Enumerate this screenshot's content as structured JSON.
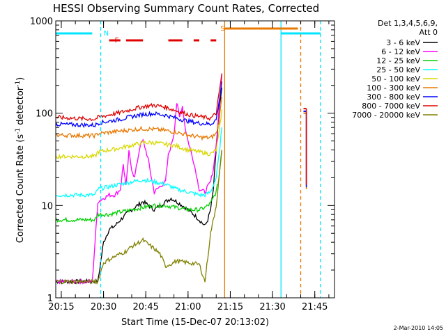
{
  "chart_data": {
    "type": "line",
    "title": "HESSI Observing Summary Count Rates, Corrected",
    "xlabel": "Start Time (15-Dec-07 20:13:02)",
    "ylabel": "Corrected Count Rate (s",
    "ylabel_exp": "-1",
    "ylabel_tail": " detector",
    "ylabel_tail_exp": "-1",
    "ylabel_close": ")",
    "yscale": "log",
    "xlim": [
      "20:13:02",
      "21:52:00"
    ],
    "ylim": [
      1,
      1000
    ],
    "x_ticks": [
      "20:15",
      "20:30",
      "20:45",
      "21:00",
      "21:15",
      "21:30",
      "21:45"
    ],
    "y_ticks": [
      "1",
      "10",
      "100",
      "1000"
    ],
    "footer": "2-Mar-2010 14:05",
    "legend_header": [
      "Det 1,3,4,5,6,9,",
      "Att 0"
    ],
    "flags": [
      {
        "label": "N",
        "color": "#00e5ff"
      },
      {
        "label": "F",
        "color": "#e00000"
      },
      {
        "label": "S",
        "color": "#e87800"
      }
    ],
    "series": [
      {
        "name": "3 - 6 keV",
        "color": "#000000",
        "x": [
          "20:13",
          "20:28",
          "20:30",
          "20:32",
          "20:34",
          "20:36",
          "20:38",
          "20:40",
          "20:42",
          "20:44",
          "20:46",
          "20:48",
          "20:50",
          "20:52",
          "20:54",
          "20:56",
          "20:58",
          "21:00",
          "21:02",
          "21:04",
          "21:06",
          "21:07",
          "21:08",
          "21:09",
          "21:10",
          "21:11",
          "21:12"
        ],
        "y": [
          1.5,
          1.5,
          4,
          5.5,
          6,
          7,
          8,
          9,
          10,
          11,
          10,
          9,
          10,
          11,
          12,
          11,
          10,
          9,
          8,
          7,
          6,
          7,
          9,
          15,
          40,
          100,
          190
        ]
      },
      {
        "name": "6 - 12 keV",
        "color": "#ff00ff",
        "x": [
          "20:13",
          "20:26",
          "20:28",
          "20:30",
          "20:32",
          "20:34",
          "20:36",
          "20:37",
          "20:38",
          "20:39",
          "20:40",
          "20:41",
          "20:42",
          "20:43",
          "20:44",
          "20:45",
          "20:46",
          "20:47",
          "20:48",
          "20:49",
          "20:50",
          "20:51",
          "20:52",
          "20:53",
          "20:54",
          "20:55",
          "20:56",
          "20:57",
          "20:58",
          "20:59",
          "21:00",
          "21:02",
          "21:04",
          "21:06",
          "21:07",
          "21:08",
          "21:09",
          "21:10",
          "21:11",
          "21:12"
        ],
        "y": [
          1.5,
          1.5,
          11,
          12,
          13,
          13,
          15,
          28,
          16,
          38,
          25,
          20,
          30,
          45,
          50,
          40,
          30,
          20,
          14,
          15,
          16,
          17,
          18,
          35,
          45,
          60,
          130,
          90,
          120,
          70,
          50,
          30,
          15,
          14,
          16,
          18,
          25,
          45,
          110,
          260
        ]
      },
      {
        "name": "12 - 25 keV",
        "color": "#00d000",
        "x": [
          "20:13",
          "20:27",
          "20:28",
          "20:32",
          "20:36",
          "20:40",
          "20:44",
          "20:48",
          "20:52",
          "20:56",
          "21:00",
          "21:04",
          "21:06",
          "21:08",
          "21:10",
          "21:11",
          "21:12"
        ],
        "y": [
          7,
          7,
          8,
          8,
          8.5,
          9,
          9.5,
          10,
          10,
          9.5,
          9,
          9,
          9.5,
          10.5,
          14,
          20,
          40
        ]
      },
      {
        "name": "25 - 50 keV",
        "color": "#00ffff",
        "x": [
          "20:13",
          "20:27",
          "20:28",
          "20:32",
          "20:36",
          "20:40",
          "20:44",
          "20:48",
          "20:52",
          "20:56",
          "21:00",
          "21:04",
          "21:06",
          "21:08",
          "21:10",
          "21:11",
          "21:12"
        ],
        "y": [
          13,
          13,
          15,
          16,
          17,
          18,
          19,
          18,
          17,
          15,
          14,
          13,
          13,
          14,
          20,
          35,
          70
        ]
      },
      {
        "name": "50 - 100 keV",
        "color": "#d8d800",
        "x": [
          "20:13",
          "20:27",
          "20:28",
          "20:32",
          "20:36",
          "20:40",
          "20:44",
          "20:48",
          "20:52",
          "20:56",
          "21:00",
          "21:04",
          "21:08",
          "21:10",
          "21:11",
          "21:12"
        ],
        "y": [
          34,
          34,
          38,
          40,
          42,
          45,
          48,
          48,
          46,
          44,
          40,
          38,
          36,
          40,
          60,
          110
        ]
      },
      {
        "name": "100 - 300 keV",
        "color": "#e87800",
        "x": [
          "20:13",
          "20:27",
          "20:28",
          "20:32",
          "20:36",
          "20:40",
          "20:44",
          "20:48",
          "20:52",
          "20:56",
          "21:00",
          "21:04",
          "21:08",
          "21:10",
          "21:11",
          "21:12"
        ],
        "y": [
          58,
          57,
          60,
          62,
          64,
          66,
          68,
          67,
          65,
          62,
          58,
          55,
          54,
          60,
          80,
          150
        ],
        "x2": [
          "21:41",
          "21:42"
        ],
        "y2": [
          100,
          100
        ]
      },
      {
        "name": "300 - 800 keV",
        "color": "#0000ff",
        "x": [
          "20:13",
          "20:27",
          "20:28",
          "20:32",
          "20:36",
          "20:40",
          "20:44",
          "20:48",
          "20:52",
          "20:56",
          "21:00",
          "21:04",
          "21:08",
          "21:10",
          "21:11",
          "21:12"
        ],
        "y": [
          76,
          74,
          78,
          82,
          86,
          92,
          97,
          99,
          95,
          88,
          82,
          78,
          76,
          85,
          130,
          220
        ],
        "x2": [
          "21:41",
          "21:42"
        ],
        "y2": [
          105,
          105
        ]
      },
      {
        "name": "800 - 7000 keV",
        "color": "#e00000",
        "x": [
          "20:13",
          "20:27",
          "20:28",
          "20:32",
          "20:36",
          "20:40",
          "20:44",
          "20:48",
          "20:52",
          "20:56",
          "21:00",
          "21:04",
          "21:08",
          "21:10",
          "21:11",
          "21:12"
        ],
        "y": [
          90,
          86,
          90,
          96,
          102,
          110,
          118,
          122,
          116,
          106,
          97,
          92,
          88,
          100,
          160,
          270
        ],
        "x2": [
          "21:41",
          "21:42"
        ],
        "y2": [
          112,
          112
        ]
      },
      {
        "name": "7000 - 20000 keV",
        "color": "#808000",
        "x": [
          "20:13",
          "20:28",
          "20:30",
          "20:32",
          "20:34",
          "20:38",
          "20:40",
          "20:44",
          "20:48",
          "20:50",
          "20:52",
          "20:56",
          "21:00",
          "21:04",
          "21:06",
          "21:08",
          "21:10",
          "21:11",
          "21:12"
        ],
        "y": [
          1.5,
          1.5,
          2.4,
          2.6,
          2.8,
          3.2,
          3.6,
          4.2,
          3.4,
          3.0,
          2.2,
          2.5,
          2.4,
          2.3,
          1.5,
          5,
          10,
          20,
          40
        ]
      }
    ],
    "attenuator_flags": [
      {
        "label": "N",
        "color": "#00e5ff",
        "segments": [
          [
            "20:13",
            "20:26"
          ],
          [
            "21:33",
            "21:47"
          ]
        ]
      },
      {
        "label": "F",
        "color": "#e00000",
        "segments": [
          [
            "20:32",
            "20:36"
          ],
          [
            "20:38",
            "20:44"
          ],
          [
            "20:53",
            "20:58"
          ],
          [
            "21:02",
            "21:04"
          ],
          [
            "21:08",
            "21:10"
          ]
        ]
      },
      {
        "label": "S",
        "color": "#e87800",
        "segments": [
          [
            "21:13",
            "21:39"
          ]
        ]
      }
    ],
    "markers": [
      {
        "x": "20:29",
        "color": "#00e5ff",
        "style": "dashed"
      },
      {
        "x": "21:13",
        "color": "#e87800",
        "style": "solid"
      },
      {
        "x": "21:33",
        "color": "#00e5ff",
        "style": "solid"
      },
      {
        "x": "21:40",
        "color": "#e87800",
        "style": "dashed"
      },
      {
        "x": "21:47",
        "color": "#00e5ff",
        "style": "dashed"
      }
    ]
  }
}
